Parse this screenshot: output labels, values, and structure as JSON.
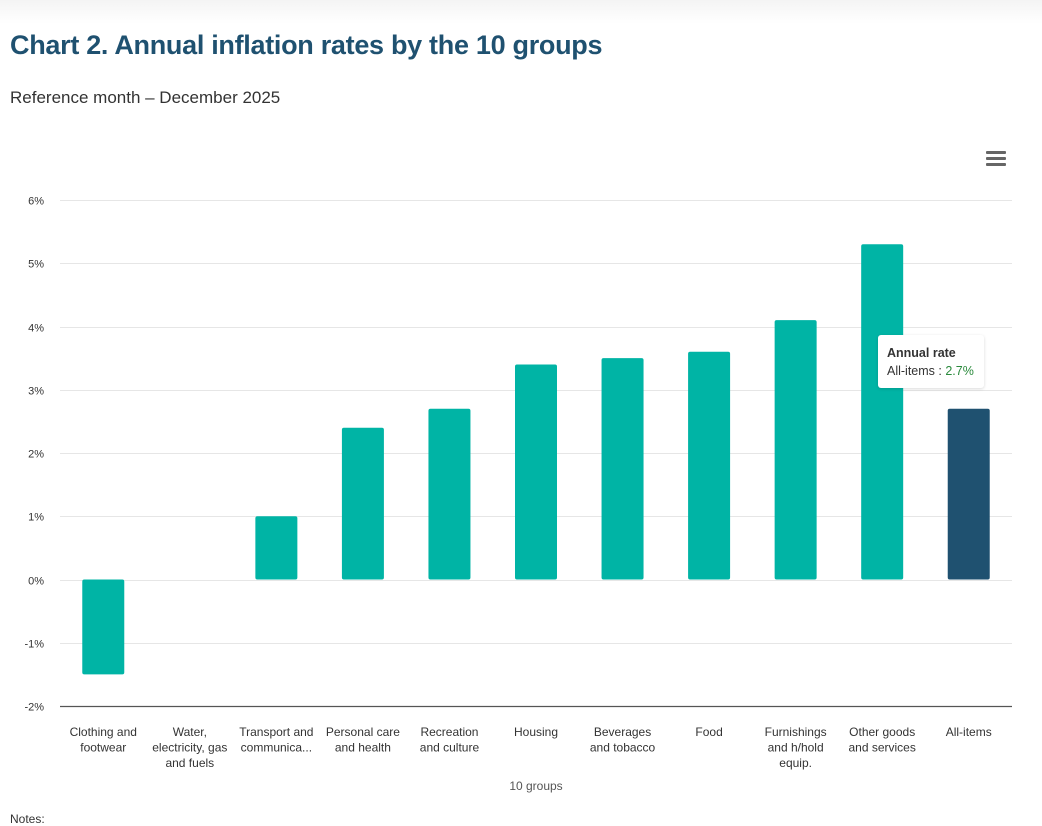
{
  "page": {
    "title": "Chart 2. Annual inflation rates by the 10 groups",
    "subtitle": "Reference month – December 2025",
    "notes_label": "Notes:",
    "menu_icon": "hamburger-menu-icon"
  },
  "tooltip": {
    "title": "Annual rate",
    "series_label": "All-items",
    "separator": " : ",
    "value": "2.7%"
  },
  "colors": {
    "bar": "#00b4a5",
    "highlight_bar": "#1f5170",
    "title": "#1f5170",
    "gridline": "#e6e6e6",
    "axis": "#555555",
    "tooltip_value": "#2a8a3c"
  },
  "chart_data": {
    "type": "bar",
    "title": "Chart 2. Annual inflation rates by the 10 groups",
    "subtitle": "Reference month – December 2025",
    "xlabel": "10 groups",
    "ylabel": "",
    "ylim": [
      -2,
      6
    ],
    "yticks": [
      -2,
      -1,
      0,
      1,
      2,
      3,
      4,
      5,
      6
    ],
    "ytick_labels": [
      "-2%",
      "-1%",
      "0%",
      "1%",
      "2%",
      "3%",
      "4%",
      "5%",
      "6%"
    ],
    "grid": true,
    "legend": "none",
    "categories": [
      "Clothing and footwear",
      "Water, electricity, gas and fuels",
      "Transport and communica...",
      "Personal care and health",
      "Recreation and culture",
      "Housing",
      "Beverages and tobacco",
      "Food",
      "Furnishings and h/hold equip.",
      "Other goods and services",
      "All-items"
    ],
    "category_label_lines": [
      [
        "Clothing and",
        "footwear"
      ],
      [
        "Water,",
        "electricity, gas",
        "and fuels"
      ],
      [
        "Transport and",
        "communica..."
      ],
      [
        "Personal care",
        "and health"
      ],
      [
        "Recreation",
        "and culture"
      ],
      [
        "Housing"
      ],
      [
        "Beverages",
        "and tobacco"
      ],
      [
        "Food"
      ],
      [
        "Furnishings",
        "and h/hold",
        "equip."
      ],
      [
        "Other goods",
        "and services"
      ],
      [
        "All-items"
      ]
    ],
    "series": [
      {
        "name": "Annual rate",
        "values": [
          -1.5,
          0.0,
          1.0,
          2.4,
          2.7,
          3.4,
          3.5,
          3.6,
          4.1,
          5.3,
          2.7
        ],
        "highlight_index": 10
      }
    ]
  }
}
